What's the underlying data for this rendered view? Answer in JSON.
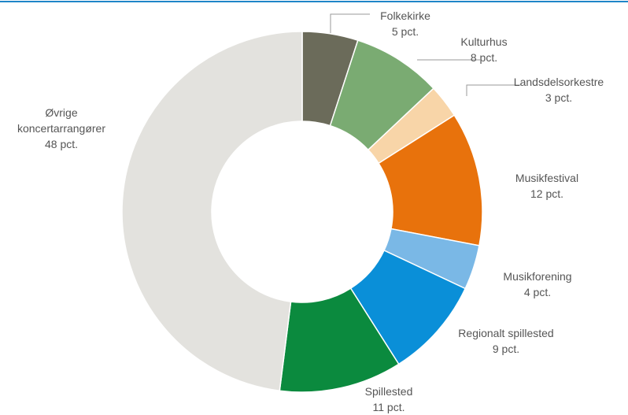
{
  "chart_data": {
    "type": "donut",
    "categories": [
      "Folkekirke",
      "Kulturhus",
      "Landsdelsorkestre",
      "Musikfestival",
      "Musikforening",
      "Regionalt spillested",
      "Spillested",
      "Øvrige koncertarrangører"
    ],
    "values": [
      5,
      8,
      3,
      12,
      4,
      9,
      11,
      48
    ],
    "value_labels": [
      "5 pct.",
      "8 pct.",
      "3 pct.",
      "12 pct.",
      "4 pct.",
      "9 pct.",
      "11 pct.",
      "48 pct."
    ],
    "colors": [
      "#6b6b5a",
      "#7aab72",
      "#f8d5a8",
      "#e8720c",
      "#7ab8e6",
      "#0a8fd8",
      "#0b8a3e",
      "#e3e2de"
    ]
  }
}
